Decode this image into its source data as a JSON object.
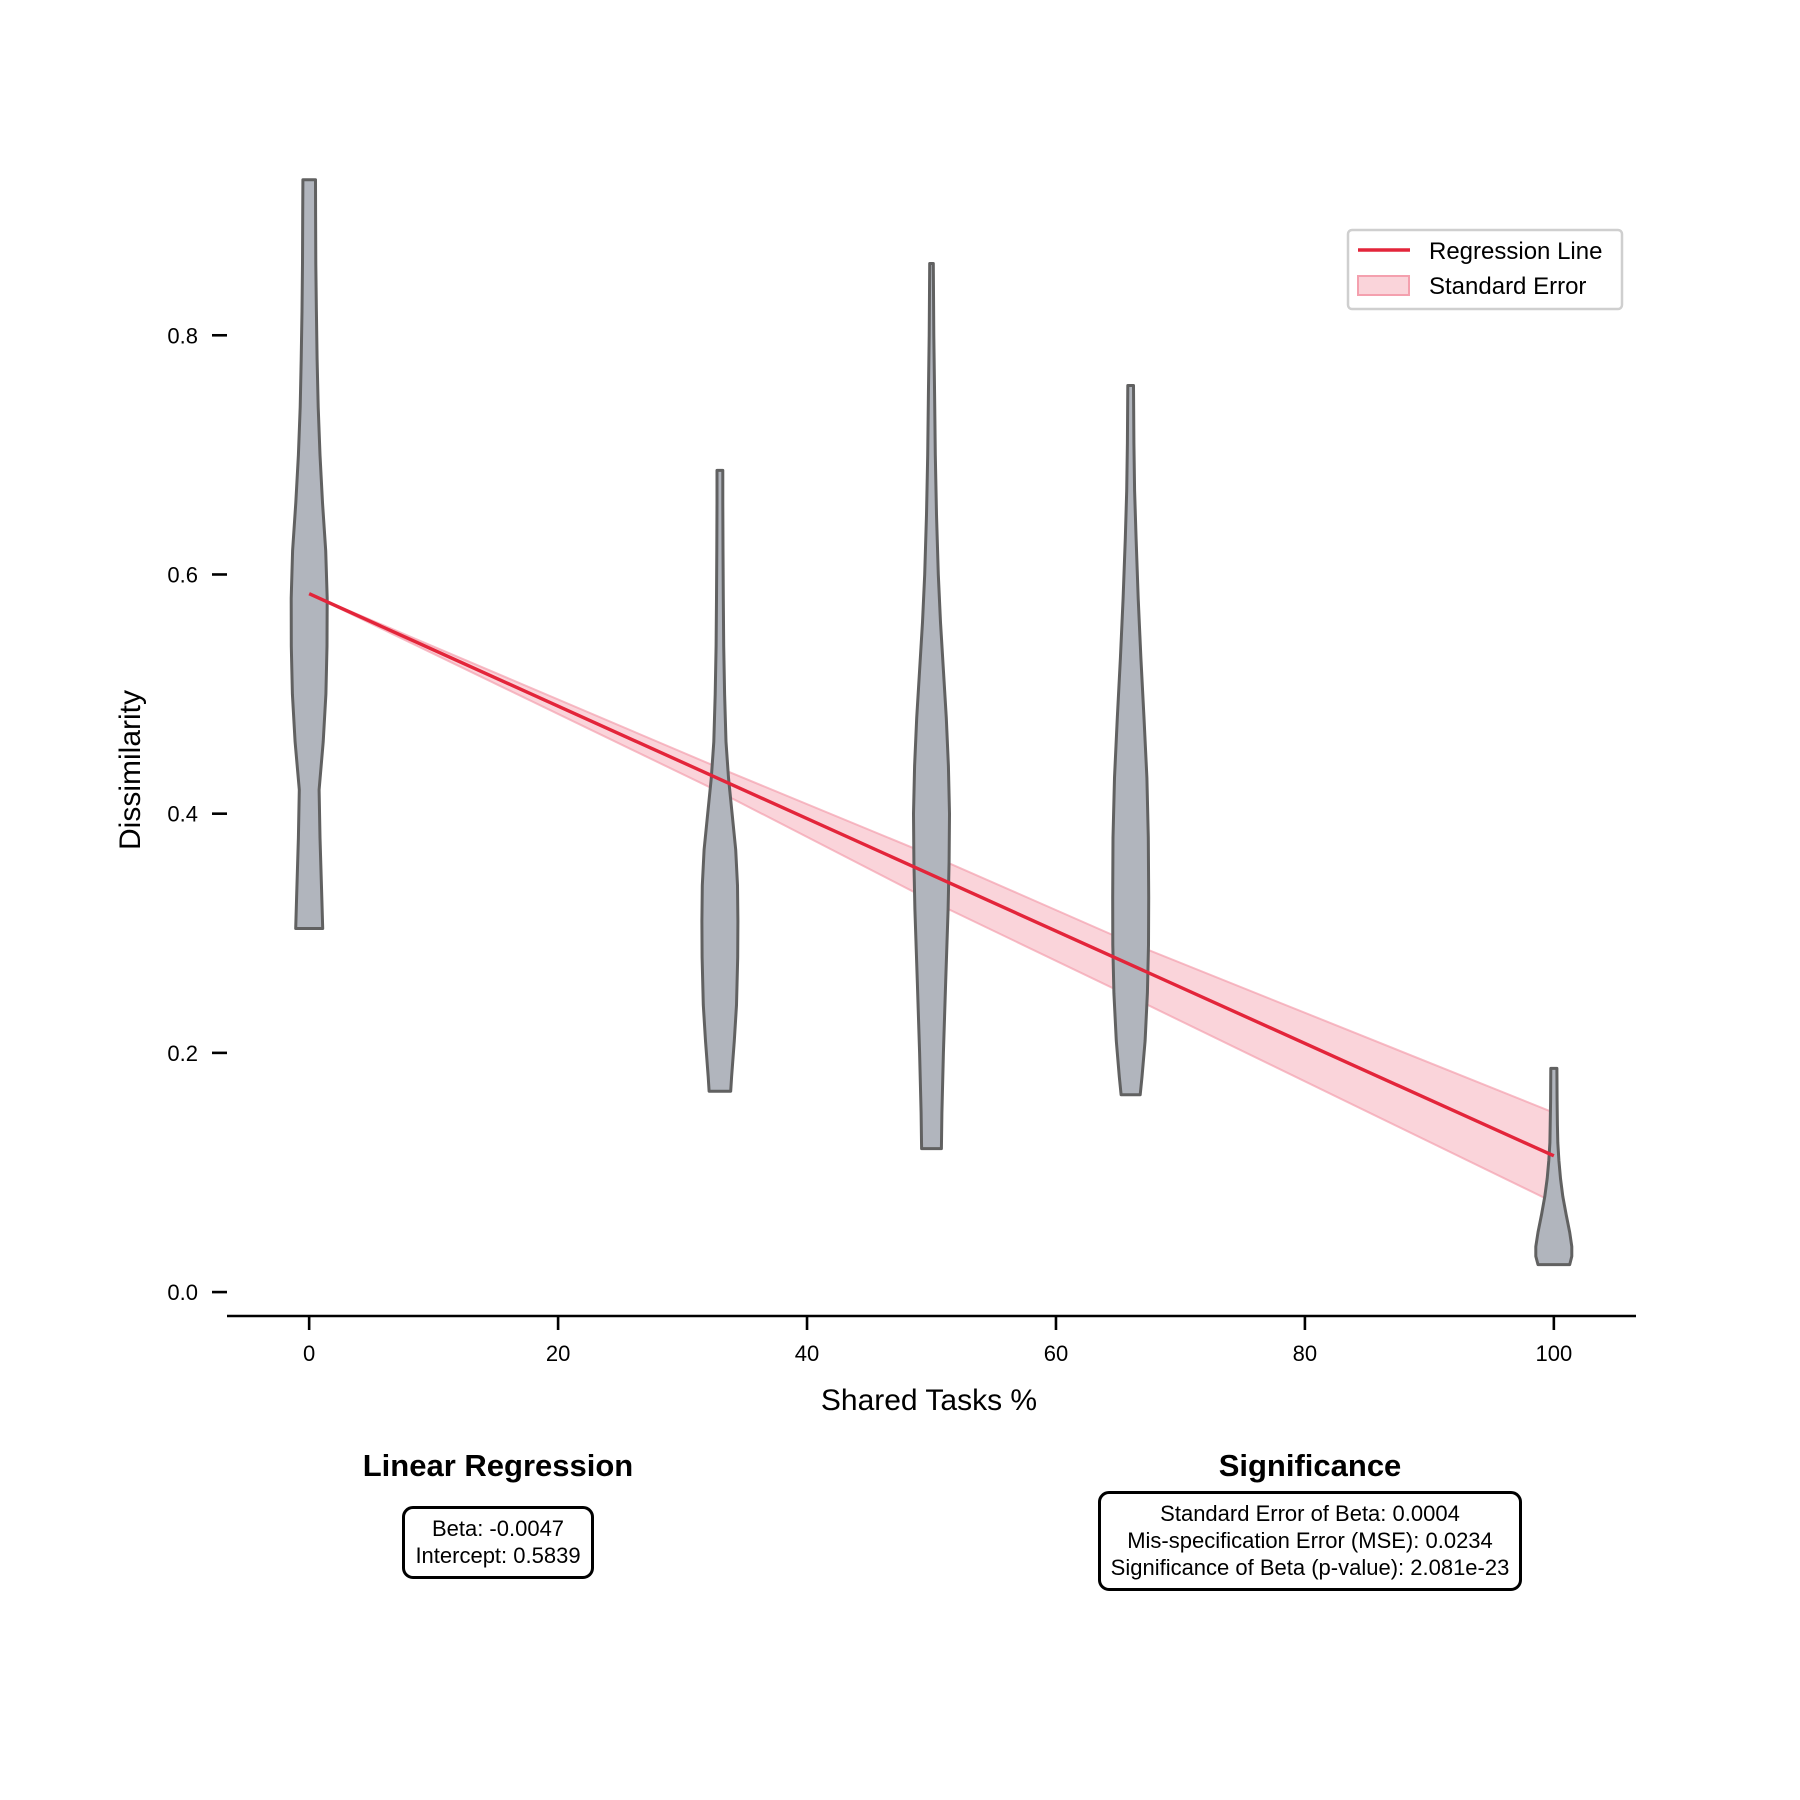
{
  "chart_data": {
    "type": "violin",
    "xlabel": "Shared Tasks %",
    "ylabel": "Dissimilarity",
    "xlim": [
      -6.6,
      106.6
    ],
    "ylim": [
      -0.02,
      0.98
    ],
    "x_ticks": [
      "0",
      "20",
      "40",
      "60",
      "80",
      "100"
    ],
    "y_ticks": [
      "0.0",
      "0.2",
      "0.4",
      "0.6",
      "0.8"
    ],
    "violin_fill": "#b1b5bd",
    "violin_edge": "#616161",
    "violins": [
      {
        "x": 0,
        "min": 0.304,
        "max": 0.93,
        "profile": [
          [
            0.304,
            0.75
          ],
          [
            0.33,
            0.7
          ],
          [
            0.38,
            0.6
          ],
          [
            0.42,
            0.55
          ],
          [
            0.46,
            0.78
          ],
          [
            0.5,
            0.93
          ],
          [
            0.54,
            0.99
          ],
          [
            0.58,
            1.0
          ],
          [
            0.62,
            0.92
          ],
          [
            0.66,
            0.74
          ],
          [
            0.7,
            0.6
          ],
          [
            0.74,
            0.5
          ],
          [
            0.78,
            0.44
          ],
          [
            0.82,
            0.4
          ],
          [
            0.86,
            0.37
          ],
          [
            0.9,
            0.36
          ],
          [
            0.93,
            0.35
          ]
        ]
      },
      {
        "x": 33,
        "min": 0.168,
        "max": 0.687,
        "profile": [
          [
            0.168,
            0.6
          ],
          [
            0.18,
            0.65
          ],
          [
            0.21,
            0.8
          ],
          [
            0.24,
            0.92
          ],
          [
            0.28,
            0.99
          ],
          [
            0.31,
            1.0
          ],
          [
            0.34,
            0.98
          ],
          [
            0.37,
            0.88
          ],
          [
            0.4,
            0.68
          ],
          [
            0.43,
            0.48
          ],
          [
            0.46,
            0.34
          ],
          [
            0.5,
            0.26
          ],
          [
            0.54,
            0.21
          ],
          [
            0.58,
            0.19
          ],
          [
            0.62,
            0.17
          ],
          [
            0.66,
            0.16
          ],
          [
            0.687,
            0.16
          ]
        ]
      },
      {
        "x": 50,
        "min": 0.12,
        "max": 0.86,
        "profile": [
          [
            0.12,
            0.55
          ],
          [
            0.15,
            0.58
          ],
          [
            0.2,
            0.66
          ],
          [
            0.26,
            0.79
          ],
          [
            0.32,
            0.92
          ],
          [
            0.36,
            0.98
          ],
          [
            0.4,
            1.0
          ],
          [
            0.44,
            0.94
          ],
          [
            0.48,
            0.82
          ],
          [
            0.52,
            0.66
          ],
          [
            0.56,
            0.5
          ],
          [
            0.6,
            0.38
          ],
          [
            0.65,
            0.28
          ],
          [
            0.7,
            0.21
          ],
          [
            0.75,
            0.17
          ],
          [
            0.8,
            0.13
          ],
          [
            0.86,
            0.1
          ]
        ]
      },
      {
        "x": 66,
        "min": 0.165,
        "max": 0.758,
        "profile": [
          [
            0.165,
            0.53
          ],
          [
            0.18,
            0.63
          ],
          [
            0.21,
            0.8
          ],
          [
            0.25,
            0.93
          ],
          [
            0.29,
            0.99
          ],
          [
            0.33,
            1.0
          ],
          [
            0.38,
            0.98
          ],
          [
            0.43,
            0.9
          ],
          [
            0.48,
            0.74
          ],
          [
            0.53,
            0.57
          ],
          [
            0.58,
            0.42
          ],
          [
            0.63,
            0.3
          ],
          [
            0.67,
            0.22
          ],
          [
            0.71,
            0.18
          ],
          [
            0.758,
            0.16
          ]
        ]
      },
      {
        "x": 100,
        "min": 0.023,
        "max": 0.187,
        "profile": [
          [
            0.023,
            0.88
          ],
          [
            0.03,
            1.0
          ],
          [
            0.038,
            1.0
          ],
          [
            0.05,
            0.88
          ],
          [
            0.065,
            0.68
          ],
          [
            0.08,
            0.5
          ],
          [
            0.095,
            0.37
          ],
          [
            0.11,
            0.28
          ],
          [
            0.125,
            0.22
          ],
          [
            0.14,
            0.2
          ],
          [
            0.16,
            0.18
          ],
          [
            0.187,
            0.17
          ]
        ]
      }
    ],
    "regression": {
      "name": "Regression Line",
      "color": "#e3253a",
      "x": [
        0,
        100
      ],
      "y": [
        0.5839,
        0.1139
      ]
    },
    "standard_error": {
      "name": "Standard Error",
      "color": "#f4a0ae",
      "x": [
        0,
        33,
        50,
        66,
        100
      ],
      "upper": [
        0.5839,
        0.438,
        0.365,
        0.292,
        0.15
      ],
      "lower": [
        0.5839,
        0.418,
        0.327,
        0.247,
        0.075
      ]
    },
    "legend_position": "top-right"
  },
  "panels": {
    "regression": {
      "title": "Linear Regression",
      "lines": [
        "Beta: -0.0047",
        "Intercept: 0.5839"
      ]
    },
    "significance": {
      "title": "Significance",
      "lines": [
        "Standard Error of Beta: 0.0004",
        "Mis-specification Error (MSE): 0.0234",
        "Significance of Beta (p-value): 2.081e-23"
      ]
    }
  }
}
